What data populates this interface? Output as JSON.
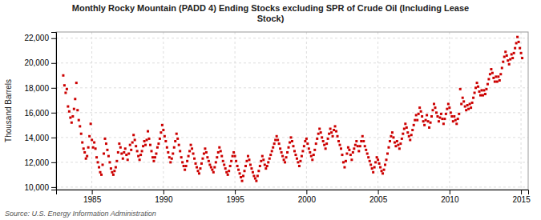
{
  "chart_data": {
    "type": "scatter",
    "title": "Monthly Rocky Mountain (PADD 4) Ending Stocks excluding SPR of Crude Oil (Including Lease\nStock)",
    "y_label": "Thousand Barrels",
    "annotations": [
      "Source: U.S. Energy Information Administration"
    ],
    "color": "#cc0000",
    "marker": "square",
    "grid": true,
    "xlim": [
      1982.5,
      2015.5
    ],
    "ylim": [
      9800,
      22500
    ],
    "xticks": [
      1985,
      1990,
      1995,
      2000,
      2005,
      2010,
      2015
    ],
    "yticks": [
      {
        "value": 10000,
        "label": "10,000"
      },
      {
        "value": 12000,
        "label": "12,000"
      },
      {
        "value": 14000,
        "label": "14,000"
      },
      {
        "value": 16000,
        "label": "16,000"
      },
      {
        "value": 18000,
        "label": "18,000"
      },
      {
        "value": 20000,
        "label": "20,000"
      },
      {
        "value": 22000,
        "label": "22,000"
      }
    ],
    "x": [
      1983.0,
      1983.083,
      1983.167,
      1983.25,
      1983.333,
      1983.417,
      1983.5,
      1983.583,
      1983.667,
      1983.75,
      1983.833,
      1983.917,
      1984.0,
      1984.083,
      1984.167,
      1984.25,
      1984.333,
      1984.417,
      1984.5,
      1984.583,
      1984.667,
      1984.75,
      1984.833,
      1984.917,
      1985.0,
      1985.083,
      1985.167,
      1985.25,
      1985.333,
      1985.417,
      1985.5,
      1985.583,
      1985.667,
      1985.75,
      1985.833,
      1985.917,
      1986.0,
      1986.083,
      1986.167,
      1986.25,
      1986.333,
      1986.417,
      1986.5,
      1986.583,
      1986.667,
      1986.75,
      1986.833,
      1986.917,
      1987.0,
      1987.083,
      1987.167,
      1987.25,
      1987.333,
      1987.417,
      1987.5,
      1987.583,
      1987.667,
      1987.75,
      1987.833,
      1987.917,
      1988.0,
      1988.083,
      1988.167,
      1988.25,
      1988.333,
      1988.417,
      1988.5,
      1988.583,
      1988.667,
      1988.75,
      1988.833,
      1988.917,
      1989.0,
      1989.083,
      1989.167,
      1989.25,
      1989.333,
      1989.417,
      1989.5,
      1989.583,
      1989.667,
      1989.75,
      1989.833,
      1989.917,
      1990.0,
      1990.083,
      1990.167,
      1990.25,
      1990.333,
      1990.417,
      1990.5,
      1990.583,
      1990.667,
      1990.75,
      1990.833,
      1990.917,
      1991.0,
      1991.083,
      1991.167,
      1991.25,
      1991.333,
      1991.417,
      1991.5,
      1991.583,
      1991.667,
      1991.75,
      1991.833,
      1991.917,
      1992.0,
      1992.083,
      1992.167,
      1992.25,
      1992.333,
      1992.417,
      1992.5,
      1992.583,
      1992.667,
      1992.75,
      1992.833,
      1992.917,
      1993.0,
      1993.083,
      1993.167,
      1993.25,
      1993.333,
      1993.417,
      1993.5,
      1993.583,
      1993.667,
      1993.75,
      1993.833,
      1993.917,
      1994.0,
      1994.083,
      1994.167,
      1994.25,
      1994.333,
      1994.417,
      1994.5,
      1994.583,
      1994.667,
      1994.75,
      1994.833,
      1994.917,
      1995.0,
      1995.083,
      1995.167,
      1995.25,
      1995.333,
      1995.417,
      1995.5,
      1995.583,
      1995.667,
      1995.75,
      1995.833,
      1995.917,
      1996.0,
      1996.083,
      1996.167,
      1996.25,
      1996.333,
      1996.417,
      1996.5,
      1996.583,
      1996.667,
      1996.75,
      1996.833,
      1996.917,
      1997.0,
      1997.083,
      1997.167,
      1997.25,
      1997.333,
      1997.417,
      1997.5,
      1997.583,
      1997.667,
      1997.75,
      1997.833,
      1997.917,
      1998.0,
      1998.083,
      1998.167,
      1998.25,
      1998.333,
      1998.417,
      1998.5,
      1998.583,
      1998.667,
      1998.75,
      1998.833,
      1998.917,
      1999.0,
      1999.083,
      1999.167,
      1999.25,
      1999.333,
      1999.417,
      1999.5,
      1999.583,
      1999.667,
      1999.75,
      1999.833,
      1999.917,
      2000.0,
      2000.083,
      2000.167,
      2000.25,
      2000.333,
      2000.417,
      2000.5,
      2000.583,
      2000.667,
      2000.75,
      2000.833,
      2000.917,
      2001.0,
      2001.083,
      2001.167,
      2001.25,
      2001.333,
      2001.417,
      2001.5,
      2001.583,
      2001.667,
      2001.75,
      2001.833,
      2001.917,
      2002.0,
      2002.083,
      2002.167,
      2002.25,
      2002.333,
      2002.417,
      2002.5,
      2002.583,
      2002.667,
      2002.75,
      2002.833,
      2002.917,
      2003.0,
      2003.083,
      2003.167,
      2003.25,
      2003.333,
      2003.417,
      2003.5,
      2003.583,
      2003.667,
      2003.75,
      2003.833,
      2003.917,
      2004.0,
      2004.083,
      2004.167,
      2004.25,
      2004.333,
      2004.417,
      2004.5,
      2004.583,
      2004.667,
      2004.75,
      2004.833,
      2004.917,
      2005.0,
      2005.083,
      2005.167,
      2005.25,
      2005.333,
      2005.417,
      2005.5,
      2005.583,
      2005.667,
      2005.75,
      2005.833,
      2005.917,
      2006.0,
      2006.083,
      2006.167,
      2006.25,
      2006.333,
      2006.417,
      2006.5,
      2006.583,
      2006.667,
      2006.75,
      2006.833,
      2006.917,
      2007.0,
      2007.083,
      2007.167,
      2007.25,
      2007.333,
      2007.417,
      2007.5,
      2007.583,
      2007.667,
      2007.75,
      2007.833,
      2007.917,
      2008.0,
      2008.083,
      2008.167,
      2008.25,
      2008.333,
      2008.417,
      2008.5,
      2008.583,
      2008.667,
      2008.75,
      2008.833,
      2008.917,
      2009.0,
      2009.083,
      2009.167,
      2009.25,
      2009.333,
      2009.417,
      2009.5,
      2009.583,
      2009.667,
      2009.75,
      2009.833,
      2009.917,
      2010.0,
      2010.083,
      2010.167,
      2010.25,
      2010.333,
      2010.417,
      2010.5,
      2010.583,
      2010.667,
      2010.75,
      2010.833,
      2010.917,
      2011.0,
      2011.083,
      2011.167,
      2011.25,
      2011.333,
      2011.417,
      2011.5,
      2011.583,
      2011.667,
      2011.75,
      2011.833,
      2011.917,
      2012.0,
      2012.083,
      2012.167,
      2012.25,
      2012.333,
      2012.417,
      2012.5,
      2012.583,
      2012.667,
      2012.75,
      2012.833,
      2012.917,
      2013.0,
      2013.083,
      2013.167,
      2013.25,
      2013.333,
      2013.417,
      2013.5,
      2013.583,
      2013.667,
      2013.75,
      2013.833,
      2013.917,
      2014.0,
      2014.083,
      2014.167,
      2014.25,
      2014.333,
      2014.417,
      2014.5,
      2014.583,
      2014.667,
      2014.75,
      2014.833,
      2014.917,
      2015.0,
      2015.083
    ],
    "values": [
      19000,
      18200,
      17600,
      17900,
      16500,
      16100,
      15600,
      15200,
      15700,
      16300,
      17100,
      18400,
      16200,
      15400,
      14900,
      14300,
      13600,
      13100,
      12800,
      12300,
      12500,
      13200,
      14100,
      15100,
      13800,
      13200,
      13600,
      13100,
      12400,
      12000,
      11600,
      11200,
      11000,
      11800,
      12700,
      13900,
      13500,
      13000,
      12500,
      12000,
      11500,
      11200,
      11000,
      11300,
      11600,
      12100,
      12800,
      13500,
      13200,
      12700,
      12300,
      12800,
      13100,
      12600,
      12200,
      12700,
      13400,
      13000,
      13600,
      14200,
      13800,
      13300,
      12900,
      12500,
      12200,
      12600,
      12900,
      13300,
      13700,
      13400,
      13800,
      14500,
      13900,
      13400,
      12900,
      12400,
      12100,
      12400,
      12700,
      13200,
      13500,
      13900,
      14400,
      15000,
      14600,
      14100,
      13700,
      13200,
      12800,
      12400,
      12000,
      12300,
      12700,
      13200,
      13700,
      14300,
      13900,
      13400,
      12900,
      12400,
      12000,
      11700,
      11400,
      11700,
      12100,
      12500,
      12900,
      13400,
      13100,
      12700,
      12300,
      11900,
      11600,
      11300,
      11100,
      11500,
      11900,
      12300,
      12700,
      13100,
      12800,
      12400,
      12100,
      11800,
      11600,
      11400,
      11200,
      11600,
      12000,
      12400,
      12800,
      13200,
      12900,
      12500,
      12100,
      11800,
      11500,
      11200,
      11000,
      11300,
      11700,
      12100,
      12500,
      12800,
      12500,
      12100,
      11700,
      11400,
      11100,
      10800,
      10500,
      10900,
      11300,
      11700,
      12100,
      12500,
      12200,
      11800,
      11500,
      11200,
      10900,
      10700,
      10500,
      10900,
      11300,
      11700,
      12100,
      12500,
      12200,
      11800,
      11500,
      11700,
      12000,
      12300,
      12600,
      12900,
      13200,
      13500,
      13800,
      14100,
      13800,
      13500,
      13100,
      12800,
      12500,
      12200,
      12000,
      12400,
      12800,
      13200,
      13600,
      14000,
      13700,
      13300,
      12900,
      12600,
      12300,
      12000,
      11700,
      12100,
      12500,
      12900,
      13300,
      13700,
      13900,
      13500,
      13100,
      12800,
      12500,
      12200,
      12600,
      13000,
      13500,
      13900,
      14300,
      14700,
      14400,
      14000,
      13700,
      13400,
      13100,
      13500,
      13900,
      14300,
      14700,
      14400,
      14100,
      14600,
      14900,
      14500,
      14100,
      13700,
      13400,
      13100,
      12600,
      12000,
      11600,
      12100,
      12700,
      13200,
      13000,
      12600,
      12200,
      12800,
      13100,
      13400,
      13700,
      13300,
      12900,
      13300,
      13700,
      14100,
      13700,
      13300,
      13000,
      12700,
      12400,
      12100,
      11800,
      11500,
      11200,
      11600,
      12000,
      12400,
      12200,
      11900,
      11600,
      11300,
      11100,
      11400,
      11800,
      12200,
      12700,
      13200,
      13700,
      14100,
      14400,
      14000,
      13600,
      13300,
      13700,
      13400,
      13100,
      13500,
      13900,
      14300,
      14700,
      15100,
      14800,
      14400,
      14100,
      13800,
      14200,
      14600,
      15000,
      15400,
      15800,
      15400,
      15900,
      16400,
      16100,
      15700,
      15300,
      15000,
      15400,
      15800,
      15300,
      14800,
      15200,
      15700,
      16200,
      16700,
      16400,
      16000,
      15700,
      15300,
      15600,
      15900,
      15500,
      15100,
      15500,
      15900,
      16300,
      16700,
      16400,
      16000,
      15700,
      15300,
      15700,
      15400,
      15100,
      15500,
      15900,
      17900,
      16700,
      17200,
      16900,
      16500,
      16200,
      16600,
      16300,
      16700,
      16400,
      16800,
      17200,
      17600,
      18000,
      18400,
      18100,
      17700,
      17400,
      17800,
      17400,
      17800,
      17500,
      17900,
      18300,
      18700,
      19100,
      19500,
      19200,
      18800,
      18500,
      18900,
      18500,
      18900,
      18600,
      19100,
      19600,
      20100,
      20500,
      20900,
      20600,
      20200,
      19900,
      20300,
      20700,
      20400,
      20800,
      21200,
      21600,
      22100,
      21700,
      21200,
      20800,
      20400
    ]
  }
}
